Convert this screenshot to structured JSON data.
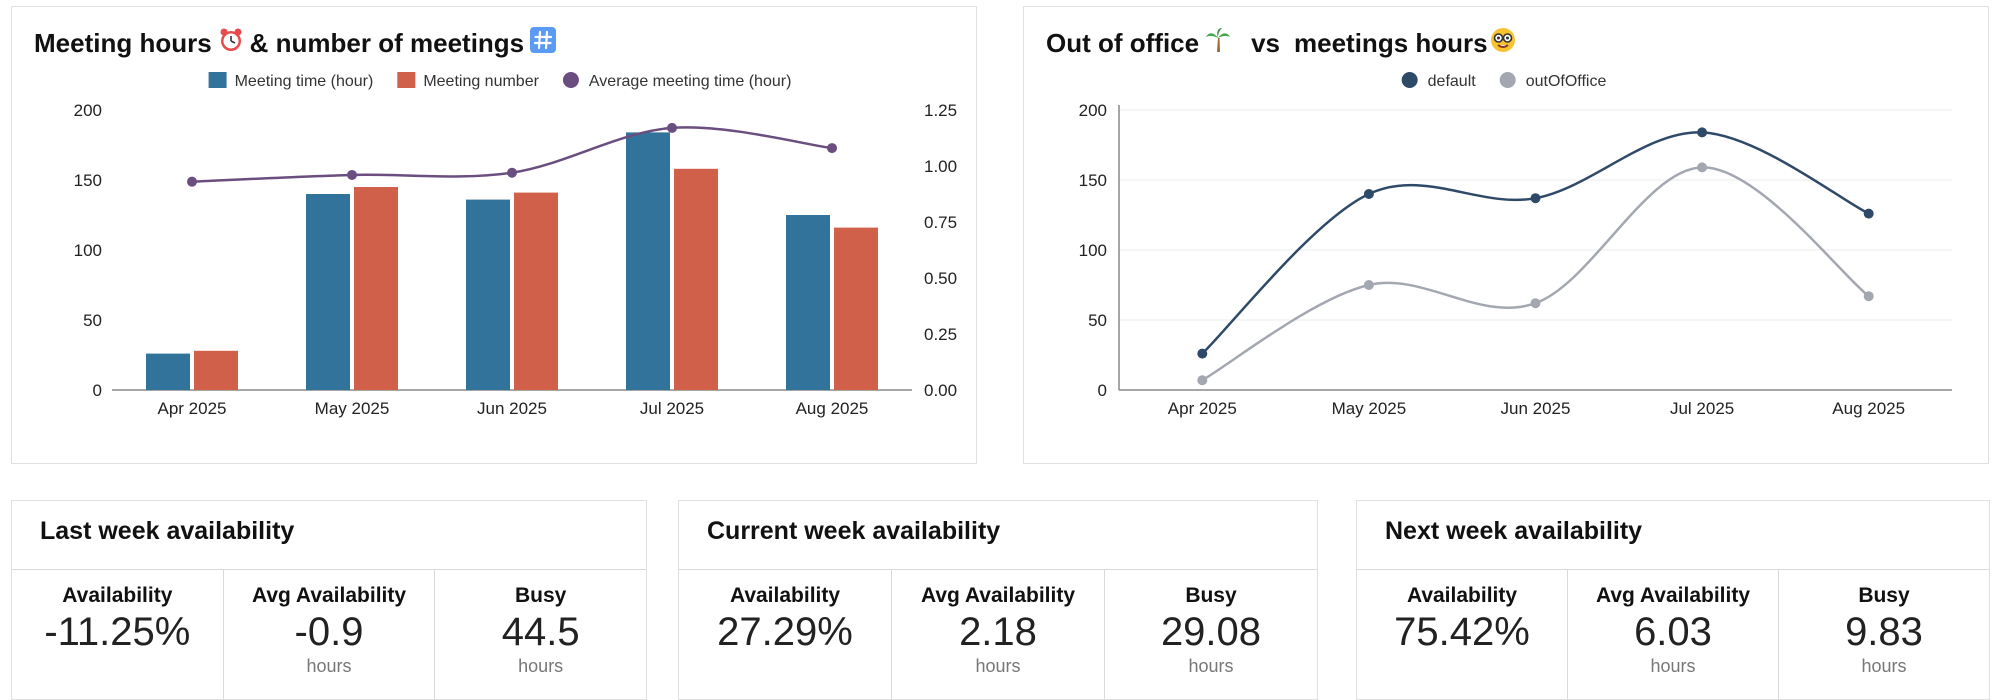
{
  "cards": {
    "meetings": {
      "title": "Meeting hours",
      "title_mid": "& number of meetings"
    },
    "ooo": {
      "title": "Out of office",
      "title_mid": "vs",
      "title_end": "meetings hours"
    }
  },
  "colors": {
    "meeting_time": "#31739b",
    "meeting_number": "#d0604a",
    "average": "#6b4e80",
    "default": "#2f4a69",
    "outOfOffice": "#a3a8b0"
  },
  "chart_data": [
    {
      "type": "bar",
      "title": "Meeting hours ⏰ & number of meetings #️⃣",
      "categories": [
        "Apr 2025",
        "May 2025",
        "Jun 2025",
        "Jul 2025",
        "Aug 2025"
      ],
      "series": [
        {
          "name": "Meeting time (hour)",
          "type": "bar",
          "axis": "left",
          "values": [
            26,
            140,
            136,
            184,
            125
          ]
        },
        {
          "name": "Meeting number",
          "type": "bar",
          "axis": "left",
          "values": [
            28,
            145,
            141,
            158,
            116
          ]
        },
        {
          "name": "Average meeting time (hour)",
          "type": "line",
          "axis": "right",
          "values": [
            0.93,
            0.96,
            0.97,
            1.17,
            1.08
          ]
        }
      ],
      "ylim": [
        0,
        200
      ],
      "yticks": [
        "0",
        "50",
        "100",
        "150",
        "200"
      ],
      "y2lim": [
        0,
        1.25
      ],
      "y2ticks": [
        "0.00",
        "0.25",
        "0.50",
        "0.75",
        "1.00",
        "1.25"
      ],
      "legend": "top-center",
      "grid": false
    },
    {
      "type": "line",
      "title": "Out of office 🌴 vs meetings hours 🤓",
      "categories": [
        "Apr 2025",
        "May 2025",
        "Jun 2025",
        "Jul 2025",
        "Aug 2025"
      ],
      "series": [
        {
          "name": "default",
          "values": [
            26,
            140,
            137,
            184,
            126
          ]
        },
        {
          "name": "outOfOffice",
          "values": [
            7,
            75,
            62,
            159,
            67
          ]
        }
      ],
      "ylim": [
        0,
        200
      ],
      "yticks": [
        "0",
        "50",
        "100",
        "150",
        "200"
      ],
      "legend": "top-center",
      "grid": true
    }
  ],
  "stats": [
    {
      "title": "Last week availability",
      "items": [
        {
          "label": "Availability",
          "value": "-11.25%",
          "unit": ""
        },
        {
          "label": "Avg Availability",
          "value": "-0.9",
          "unit": "hours"
        },
        {
          "label": "Busy",
          "value": "44.5",
          "unit": "hours"
        }
      ]
    },
    {
      "title": "Current week availability",
      "items": [
        {
          "label": "Availability",
          "value": "27.29%",
          "unit": ""
        },
        {
          "label": "Avg Availability",
          "value": "2.18",
          "unit": "hours"
        },
        {
          "label": "Busy",
          "value": "29.08",
          "unit": "hours"
        }
      ]
    },
    {
      "title": "Next week availability",
      "items": [
        {
          "label": "Availability",
          "value": "75.42%",
          "unit": ""
        },
        {
          "label": "Avg Availability",
          "value": "6.03",
          "unit": "hours"
        },
        {
          "label": "Busy",
          "value": "9.83",
          "unit": "hours"
        }
      ]
    }
  ]
}
